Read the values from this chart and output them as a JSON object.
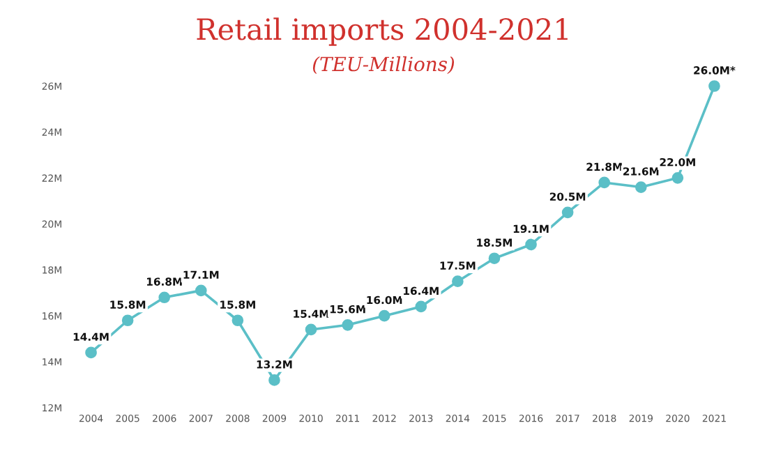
{
  "chart_data": {
    "type": "line",
    "title": "Retail imports 2004-2021",
    "subtitle": "(TEU-Millions)",
    "categories": [
      "2004",
      "2005",
      "2006",
      "2007",
      "2008",
      "2009",
      "2010",
      "2011",
      "2012",
      "2013",
      "2014",
      "2015",
      "2016",
      "2017",
      "2018",
      "2019",
      "2020",
      "2021"
    ],
    "series": [
      {
        "color": "#5bbfc7",
        "values": [
          14.4,
          15.8,
          16.8,
          17.1,
          15.8,
          13.2,
          15.4,
          15.6,
          16.0,
          16.4,
          17.5,
          18.5,
          19.1,
          20.5,
          21.8,
          21.6,
          22.0,
          26.0
        ],
        "value_labels": [
          "14.4M",
          "15.8M",
          "16.8M",
          "17.1M",
          "15.8M",
          "13.2M",
          "15.4M",
          "15.6M",
          "16.0M",
          "16.4M",
          "17.5M",
          "18.5M",
          "19.1M",
          "20.5M",
          "21.8M",
          "21.6M",
          "22.0M",
          "26.0M*"
        ]
      }
    ],
    "ylim": [
      12,
      26
    ],
    "yticks": [
      {
        "value": 12,
        "label": "12M"
      },
      {
        "value": 14,
        "label": "14M"
      },
      {
        "value": 16,
        "label": "16M"
      },
      {
        "value": 18,
        "label": "18M"
      },
      {
        "value": 20,
        "label": "20M"
      },
      {
        "value": 22,
        "label": "22M"
      },
      {
        "value": 24,
        "label": "24M"
      },
      {
        "value": 26,
        "label": "26M"
      }
    ],
    "grid": false,
    "marker": "circle",
    "line_style": "solid"
  }
}
